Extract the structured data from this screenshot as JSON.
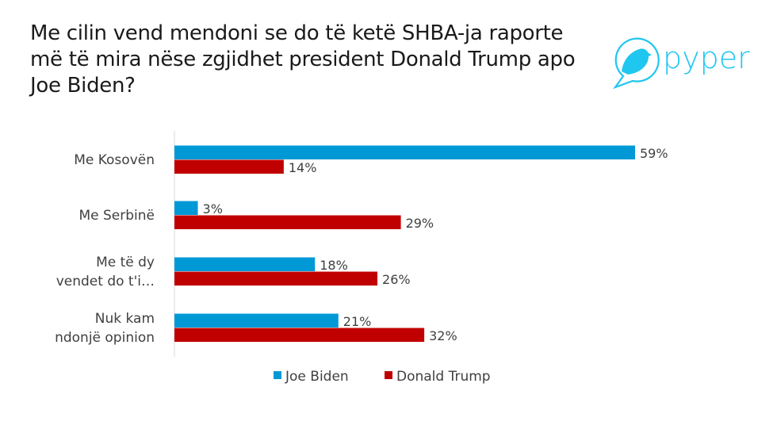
{
  "title": "Me cilin vend mendoni se do të ketë SHBA-ja raporte më të mira nëse zgjidhet president Donald Trump apo Joe Biden?",
  "logo": {
    "text": "pyper",
    "color": "#1fc6f0",
    "icon": "bird-in-speech-bubble-icon"
  },
  "chart_data": {
    "type": "bar",
    "orientation": "horizontal",
    "categories": [
      [
        "Me Kosovën"
      ],
      [
        "Me Serbinë"
      ],
      [
        "Me të dy",
        "vendet do t'i…"
      ],
      [
        "Nuk kam",
        "ndonjë opinion"
      ]
    ],
    "series": [
      {
        "name": "Joe Biden",
        "color": "#0099d6",
        "values": [
          59,
          3,
          18,
          21
        ]
      },
      {
        "name": "Donald Trump",
        "color": "#c00000",
        "values": [
          14,
          29,
          26,
          32
        ]
      }
    ],
    "data_labels": [
      [
        "59%",
        "3%",
        "18%",
        "21%"
      ],
      [
        "14%",
        "29%",
        "26%",
        "32%"
      ]
    ],
    "xlim": [
      0,
      65
    ],
    "grid": false,
    "legend": "bottom"
  }
}
